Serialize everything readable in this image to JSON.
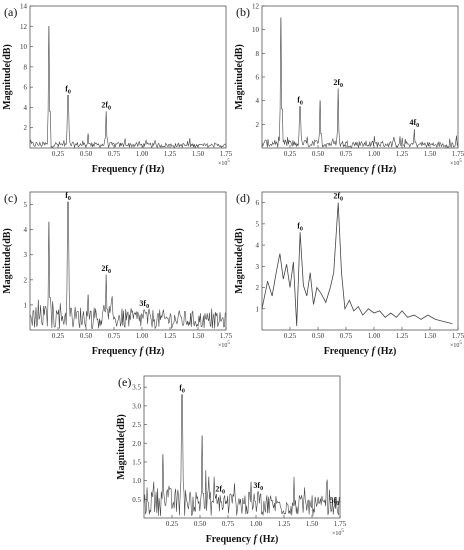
{
  "chart_data": [
    {
      "id": "a",
      "type": "line",
      "panel_label": "(a)",
      "xlabel_prefix": "Frequency ",
      "xlabel_var": "f",
      "xlabel_unit": " (Hz)",
      "ylabel": "Magnitude(dB)",
      "x_multiplier": "×10^5",
      "xlim": [
        0,
        1.75
      ],
      "ylim": [
        0,
        14
      ],
      "xticks": [
        "0.25",
        "0.50",
        "0.75",
        "1.00",
        "1.25",
        "1.50",
        "1.75"
      ],
      "yticks": [
        "2",
        "4",
        "6",
        "8",
        "10",
        "12",
        "14"
      ],
      "peaks": [
        {
          "x": 0.17,
          "y": 12.0,
          "label": ""
        },
        {
          "x": 0.34,
          "y": 5.2,
          "label": "f0"
        },
        {
          "x": 0.52,
          "y": 1.4,
          "label": ""
        },
        {
          "x": 0.68,
          "y": 3.6,
          "label": "2f0"
        },
        {
          "x": 0.85,
          "y": 0.9,
          "label": ""
        }
      ],
      "noise": 0.6
    },
    {
      "id": "b",
      "type": "line",
      "panel_label": "(b)",
      "xlabel_prefix": "Frequency ",
      "xlabel_var": "f",
      "xlabel_unit": " (Hz)",
      "ylabel": "Magnitude(dB)",
      "x_multiplier": "×10^5",
      "xlim": [
        0,
        1.75
      ],
      "ylim": [
        0,
        12
      ],
      "xticks": [
        "0.25",
        "0.50",
        "0.75",
        "1.00",
        "1.25",
        "1.50",
        "1.75"
      ],
      "yticks": [
        "2",
        "4",
        "6",
        "8",
        "10",
        "12"
      ],
      "peaks": [
        {
          "x": 0.17,
          "y": 11.0,
          "label": ""
        },
        {
          "x": 0.34,
          "y": 3.5,
          "label": "f0"
        },
        {
          "x": 0.52,
          "y": 4.0,
          "label": ""
        },
        {
          "x": 0.68,
          "y": 5.0,
          "label": "2f0"
        },
        {
          "x": 1.36,
          "y": 1.6,
          "label": "4f0"
        }
      ],
      "noise": 0.7
    },
    {
      "id": "c",
      "type": "line",
      "panel_label": "(c)",
      "xlabel_prefix": "Frequency ",
      "xlabel_var": "f",
      "xlabel_unit": " (Hz)",
      "ylabel": "Magnitude(dB)",
      "x_multiplier": "×10^5",
      "xlim": [
        0,
        1.75
      ],
      "ylim": [
        0,
        5.5
      ],
      "xticks": [
        "0.25",
        "0.50",
        "0.75",
        "1.00",
        "1.25",
        "1.50",
        "1.75"
      ],
      "yticks": [
        "1",
        "2",
        "3",
        "4",
        "5"
      ],
      "peaks": [
        {
          "x": 0.17,
          "y": 4.3,
          "label": ""
        },
        {
          "x": 0.34,
          "y": 5.1,
          "label": "f0"
        },
        {
          "x": 0.52,
          "y": 1.4,
          "label": ""
        },
        {
          "x": 0.68,
          "y": 2.2,
          "label": "2f0"
        },
        {
          "x": 1.02,
          "y": 0.8,
          "label": "3f0"
        }
      ],
      "noise": 1.0
    },
    {
      "id": "d",
      "type": "line",
      "panel_label": "(d)",
      "xlabel_prefix": "Frequency ",
      "xlabel_var": "f",
      "xlabel_unit": " (Hz)",
      "ylabel": "Magnitude(dB)",
      "x_multiplier": "×10^5",
      "xlim": [
        0,
        1.75
      ],
      "ylim": [
        0,
        6.5
      ],
      "xticks": [
        "0.25",
        "0.50",
        "0.75",
        "1.00",
        "1.25",
        "1.50",
        "1.75"
      ],
      "yticks": [
        "1",
        "2",
        "3",
        "4",
        "5",
        "6"
      ],
      "points": [
        [
          0.0,
          1.0
        ],
        [
          0.05,
          2.3
        ],
        [
          0.09,
          1.6
        ],
        [
          0.13,
          2.8
        ],
        [
          0.16,
          3.6
        ],
        [
          0.19,
          2.4
        ],
        [
          0.22,
          3.1
        ],
        [
          0.25,
          2.0
        ],
        [
          0.28,
          3.2
        ],
        [
          0.31,
          0.2
        ],
        [
          0.34,
          4.6
        ],
        [
          0.37,
          2.1
        ],
        [
          0.4,
          1.6
        ],
        [
          0.43,
          2.7
        ],
        [
          0.46,
          1.2
        ],
        [
          0.49,
          2.0
        ],
        [
          0.53,
          1.7
        ],
        [
          0.57,
          1.3
        ],
        [
          0.61,
          2.0
        ],
        [
          0.64,
          2.7
        ],
        [
          0.68,
          6.0
        ],
        [
          0.71,
          2.7
        ],
        [
          0.74,
          1.0
        ],
        [
          0.78,
          1.4
        ],
        [
          0.82,
          0.9
        ],
        [
          0.86,
          1.1
        ],
        [
          0.9,
          0.7
        ],
        [
          0.95,
          1.0
        ],
        [
          1.0,
          0.8
        ],
        [
          1.05,
          0.9
        ],
        [
          1.1,
          0.6
        ],
        [
          1.15,
          0.8
        ],
        [
          1.2,
          0.6
        ],
        [
          1.25,
          0.9
        ],
        [
          1.3,
          0.6
        ],
        [
          1.36,
          0.7
        ],
        [
          1.42,
          0.5
        ],
        [
          1.48,
          0.7
        ],
        [
          1.55,
          0.5
        ],
        [
          1.62,
          0.4
        ],
        [
          1.7,
          0.3
        ]
      ],
      "annotations": [
        {
          "x": 0.34,
          "y": 4.6,
          "label": "f0"
        },
        {
          "x": 0.68,
          "y": 6.0,
          "label": "2f0"
        }
      ]
    },
    {
      "id": "e",
      "type": "line",
      "panel_label": "(e)",
      "xlabel_prefix": "Frequency ",
      "xlabel_var": "f",
      "xlabel_unit": " (Hz)",
      "ylabel": "Magnitude(dB)",
      "x_multiplier": "×10^5",
      "xlim": [
        0,
        1.75
      ],
      "ylim": [
        0,
        3.8
      ],
      "xticks": [
        "0.25",
        "0.50",
        "0.75",
        "1.00",
        "1.25",
        "1.50",
        "1.75"
      ],
      "yticks": [
        "0.5",
        "1.0",
        "1.5",
        "2.0",
        "2.5",
        "3.0",
        "3.5"
      ],
      "peaks": [
        {
          "x": 0.17,
          "y": 1.7,
          "label": ""
        },
        {
          "x": 0.34,
          "y": 3.3,
          "label": "f0"
        },
        {
          "x": 0.52,
          "y": 2.2,
          "label": ""
        },
        {
          "x": 0.68,
          "y": 0.6,
          "label": "2f0"
        },
        {
          "x": 1.02,
          "y": 0.7,
          "label": "3f0"
        },
        {
          "x": 1.7,
          "y": 0.3,
          "label": "5f0"
        }
      ],
      "noise": 0.8
    }
  ]
}
